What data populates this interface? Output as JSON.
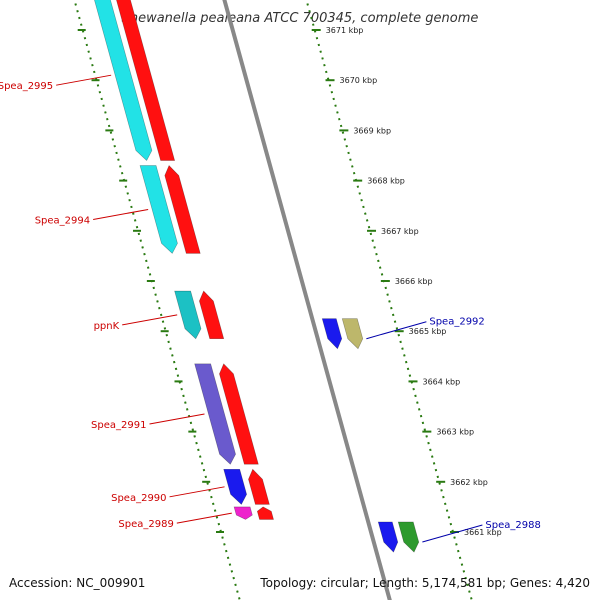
{
  "header": {
    "title": "Shewanella pealeana ATCC 700345, complete genome"
  },
  "footer": {
    "accession": "Accession: NC_009901",
    "summary": "Topology: circular; Length: 5,174,581 bp; Genes: 4,420"
  },
  "colors": {
    "backbone": "#888888",
    "ticks": "#2a7a12",
    "forward_label": "#cc0000",
    "reverse_label": "#0000aa",
    "red": "#ff1010",
    "cyan": "#22e2e6",
    "teal": "#1cc1c4",
    "blue": "#1a1aee",
    "slate": "#6a5acd",
    "khaki": "#bdb76b",
    "magenta": "#ee22cc",
    "green": "#2e9a2e"
  },
  "ruler": {
    "unit": "kbp",
    "ticks": [
      {
        "kbp": 3661,
        "label": "3661 kbp"
      },
      {
        "kbp": 3662,
        "label": "3662 kbp"
      },
      {
        "kbp": 3663,
        "label": "3663 kbp"
      },
      {
        "kbp": 3664,
        "label": "3664 kbp"
      },
      {
        "kbp": 3665,
        "label": "3665 kbp"
      },
      {
        "kbp": 3666,
        "label": "3666 kbp"
      },
      {
        "kbp": 3667,
        "label": "3667 kbp"
      },
      {
        "kbp": 3668,
        "label": "3668 kbp"
      },
      {
        "kbp": 3669,
        "label": "3669 kbp"
      },
      {
        "kbp": 3670,
        "label": "3670 kbp"
      },
      {
        "kbp": 3671,
        "label": "3671 kbp"
      }
    ]
  },
  "features": [
    {
      "name": "Spea_2988",
      "strand": "reverse",
      "start_kbp": 3660.6,
      "end_kbp": 3661.2,
      "outer": "blue",
      "inner": "green"
    },
    {
      "name": "Spea_2989",
      "strand": "forward",
      "start_kbp": 3661.25,
      "end_kbp": 3661.5,
      "outer": "magenta",
      "inner": "red"
    },
    {
      "name": "Spea_2990",
      "strand": "forward",
      "start_kbp": 3661.55,
      "end_kbp": 3662.25,
      "outer": "blue",
      "inner": "red"
    },
    {
      "name": "Spea_2991",
      "strand": "forward",
      "start_kbp": 3662.35,
      "end_kbp": 3664.35,
      "outer": "slate",
      "inner": "red"
    },
    {
      "name": "ppnK",
      "strand": "forward",
      "start_kbp": 3664.85,
      "end_kbp": 3665.8,
      "outer": "teal",
      "inner": "red"
    },
    {
      "name": "Spea_2992",
      "strand": "reverse",
      "start_kbp": 3664.65,
      "end_kbp": 3665.25,
      "outer": "blue",
      "inner": "khaki"
    },
    {
      "name": "Spea_2994",
      "strand": "forward",
      "start_kbp": 3666.55,
      "end_kbp": 3668.3,
      "outer": "cyan",
      "inner": "red"
    },
    {
      "name": "Spea_2995",
      "strand": "forward",
      "start_kbp": 3668.4,
      "end_kbp": 3671.8,
      "outer": "cyan",
      "inner": "red"
    }
  ]
}
